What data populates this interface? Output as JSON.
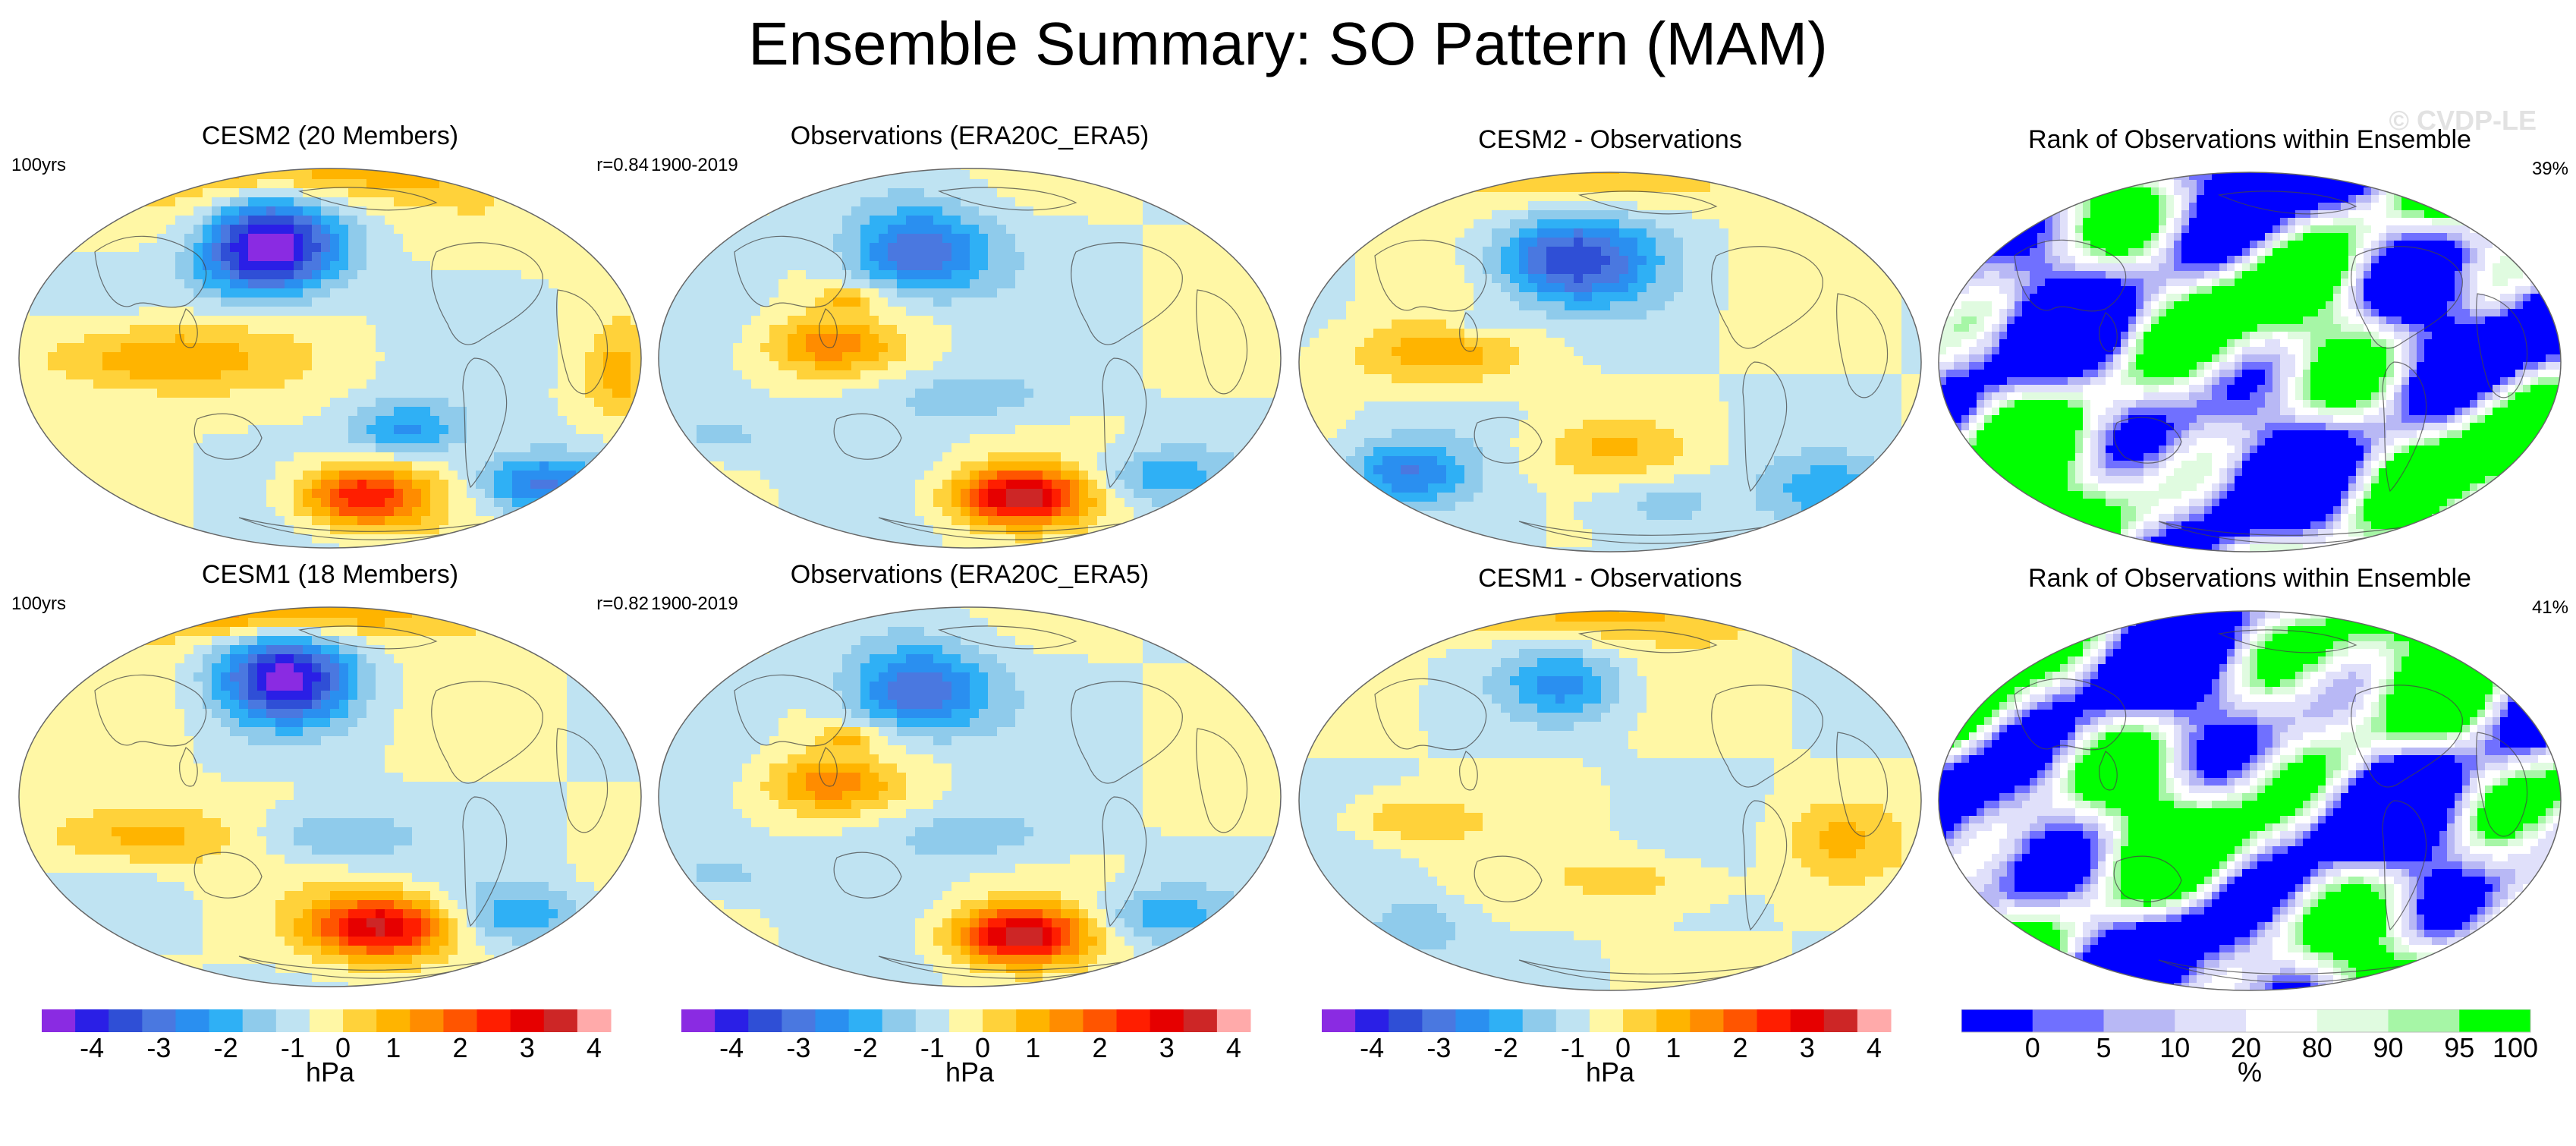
{
  "title": "Ensemble Summary: SO Pattern (MAM)",
  "watermark": "© CVDP-LE",
  "panels": [
    {
      "title": "CESM2 (20 Members)",
      "left": "100yrs",
      "right": "r=0.84",
      "kind": "field",
      "variant": 0
    },
    {
      "title": "Observations (ERA20C_ERA5)",
      "left": "1900-2019",
      "right": "",
      "kind": "field",
      "variant": 1
    },
    {
      "title": "CESM2 - Observations",
      "left": "",
      "right": "",
      "kind": "field",
      "variant": 2
    },
    {
      "title": "Rank of Observations within Ensemble",
      "left": "",
      "right": "39%",
      "kind": "rank",
      "variant": 0
    },
    {
      "title": "CESM1 (18 Members)",
      "left": "100yrs",
      "right": "r=0.82",
      "kind": "field",
      "variant": 3
    },
    {
      "title": "Observations (ERA20C_ERA5)",
      "left": "1900-2019",
      "right": "",
      "kind": "field",
      "variant": 1
    },
    {
      "title": "CESM1 - Observations",
      "left": "",
      "right": "",
      "kind": "field",
      "variant": 4
    },
    {
      "title": "Rank of Observations within Ensemble",
      "left": "",
      "right": "41%",
      "kind": "rank",
      "variant": 1
    }
  ],
  "colorbars": [
    {
      "units": "hPa",
      "ticks": [
        "-4",
        "-3",
        "-2",
        "-1",
        "0",
        "1",
        "2",
        "3",
        "4"
      ]
    },
    {
      "units": "hPa",
      "ticks": [
        "-4",
        "-3",
        "-2",
        "-1",
        "0",
        "1",
        "2",
        "3",
        "4"
      ]
    },
    {
      "units": "hPa",
      "ticks": [
        "-4",
        "-3",
        "-2",
        "-1",
        "0",
        "1",
        "2",
        "3",
        "4"
      ]
    },
    {
      "units": "%",
      "ticks": [
        "0",
        "5",
        "10",
        "20",
        "80",
        "90",
        "95",
        "100"
      ]
    }
  ],
  "colors": {
    "field_scale": [
      "#8a2be2",
      "#2a1fe6",
      "#2f4fd6",
      "#4a78e0",
      "#2a8ff0",
      "#2fb0f5",
      "#8fcbeb",
      "#bfe3f2",
      "#fff7a5",
      "#ffd23a",
      "#ffb400",
      "#ff8c00",
      "#ff5500",
      "#ff1e00",
      "#e60000",
      "#cd2626",
      "#ffaaaa"
    ],
    "rank_scale": [
      "#0000ff",
      "#7070ff",
      "#b8b8f5",
      "#e0e0fa",
      "#ffffff",
      "#e0fbe0",
      "#a6f6a6",
      "#00ff00"
    ]
  },
  "chart_data": {
    "type": "heatmap",
    "projection": "Robinson (Pacific-centered)",
    "field_contour_levels_hPa": [
      -4,
      -3.5,
      -3,
      -2.5,
      -2,
      -1.5,
      -1,
      -0.5,
      0,
      0.5,
      1,
      1.5,
      2,
      2.5,
      3,
      3.5,
      4
    ],
    "rank_levels_percent": [
      0,
      5,
      10,
      20,
      80,
      90,
      95,
      100
    ],
    "pattern_correlation": {
      "CESM2": 0.84,
      "CESM1": 0.82
    },
    "rank_percent_area": {
      "CESM2": 39,
      "CESM1": 41
    }
  }
}
